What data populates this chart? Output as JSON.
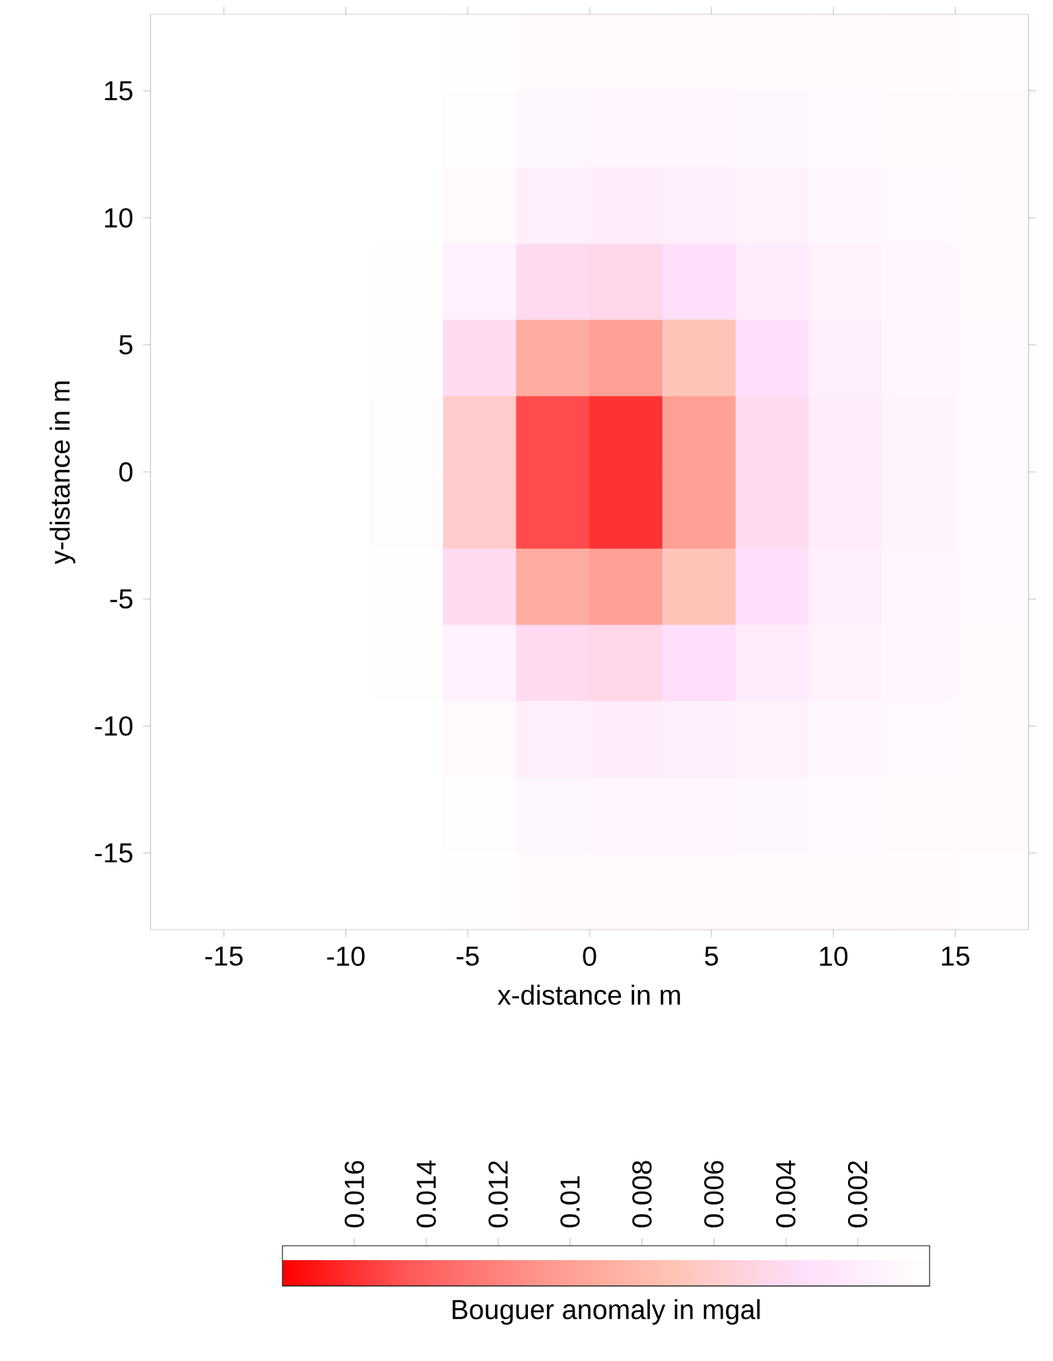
{
  "chart_data": {
    "type": "heatmap",
    "xlabel": "x-distance in m",
    "ylabel": "y-distance in m",
    "clabel": "Bouguer anomaly in mgal",
    "x": [
      -16.5,
      -13.5,
      -10.5,
      -7.5,
      -4.5,
      -1.5,
      1.5,
      4.5,
      7.5,
      10.5,
      13.5,
      16.5
    ],
    "y": [
      16.5,
      13.5,
      10.5,
      7.5,
      4.5,
      1.5,
      -1.5,
      -4.5,
      -7.5,
      -10.5,
      -13.5,
      -16.5
    ],
    "cells": [
      [
        0,
        0,
        0,
        0,
        0.0001,
        0.0005,
        0.0007,
        0.0007,
        0.0006,
        0.0006,
        0.0005,
        0.0004
      ],
      [
        0,
        0,
        0,
        0,
        0.0003,
        0.0009,
        0.0011,
        0.0011,
        0.0009,
        0.0008,
        0.0006,
        0.0005
      ],
      [
        0,
        0,
        0,
        0,
        0.0006,
        0.0018,
        0.002,
        0.0018,
        0.0014,
        0.001,
        0.0008,
        0.0006
      ],
      [
        0,
        0,
        0,
        0.0001,
        0.0015,
        0.004,
        0.0045,
        0.0035,
        0.0022,
        0.0014,
        0.001,
        0.0007
      ],
      [
        0,
        0,
        0,
        0.0002,
        0.004,
        0.009,
        0.01,
        0.007,
        0.0035,
        0.0018,
        0.0011,
        0.0008
      ],
      [
        0,
        0,
        0,
        0.0003,
        0.006,
        0.015,
        0.016,
        0.01,
        0.004,
        0.002,
        0.0012,
        0.0008
      ],
      [
        0,
        0,
        0,
        0.0003,
        0.006,
        0.015,
        0.016,
        0.01,
        0.004,
        0.002,
        0.0012,
        0.0008
      ],
      [
        0,
        0,
        0,
        0.0002,
        0.004,
        0.009,
        0.01,
        0.007,
        0.0035,
        0.0018,
        0.0011,
        0.0008
      ],
      [
        0,
        0,
        0,
        0.0001,
        0.0015,
        0.004,
        0.0045,
        0.0035,
        0.0022,
        0.0014,
        0.001,
        0.0007
      ],
      [
        0,
        0,
        0,
        0,
        0.0006,
        0.0018,
        0.002,
        0.0018,
        0.0014,
        0.001,
        0.0008,
        0.0006
      ],
      [
        0,
        0,
        0,
        0,
        0.0003,
        0.0009,
        0.0011,
        0.0011,
        0.0009,
        0.0008,
        0.0006,
        0.0005
      ],
      [
        0,
        0,
        0,
        0,
        0.0001,
        0.0005,
        0.0007,
        0.0007,
        0.0006,
        0.0006,
        0.0005,
        0.0004
      ]
    ],
    "xlim": [
      -18,
      18
    ],
    "ylim": [
      -18,
      18
    ],
    "xticks": [
      -15,
      -10,
      -5,
      0,
      5,
      10,
      15
    ],
    "yticks": [
      -15,
      -10,
      -5,
      0,
      5,
      10,
      15
    ],
    "clim": [
      0.018,
      0
    ],
    "cticks": [
      0.016,
      0.014,
      0.012,
      0.01,
      0.008,
      0.006,
      0.004,
      0.002
    ]
  }
}
